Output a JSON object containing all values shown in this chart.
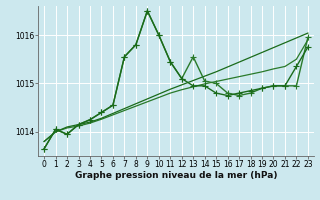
{
  "xlabel": "Graphe pression niveau de la mer (hPa)",
  "bg_color": "#cce8ee",
  "grid_color": "#ffffff",
  "ylim": [
    1013.5,
    1016.6
  ],
  "xlim": [
    -0.5,
    23.5
  ],
  "yticks": [
    1014,
    1015,
    1016
  ],
  "xticks": [
    0,
    1,
    2,
    3,
    4,
    5,
    6,
    7,
    8,
    9,
    10,
    11,
    12,
    13,
    14,
    15,
    16,
    17,
    18,
    19,
    20,
    21,
    22,
    23
  ],
  "series": [
    {
      "y": [
        1013.65,
        1014.05,
        1013.95,
        1014.15,
        1014.25,
        1014.4,
        1014.55,
        1015.55,
        1015.8,
        1016.5,
        1016.0,
        1015.45,
        1015.1,
        1014.95,
        1014.95,
        1014.8,
        1014.75,
        1014.8,
        1014.85,
        1014.9,
        1014.95,
        1014.95,
        1015.35,
        1015.75
      ],
      "color": "#1a6b1a",
      "marker": "+",
      "markersize": 4,
      "linewidth": 1.0,
      "zorder": 4
    },
    {
      "y": [
        1013.65,
        1014.05,
        1013.95,
        1014.15,
        1014.25,
        1014.4,
        1014.55,
        1015.55,
        1015.8,
        1016.5,
        1016.0,
        1015.45,
        1015.1,
        1015.55,
        1015.05,
        1015.0,
        1014.8,
        1014.75,
        1014.8,
        1014.9,
        1014.95,
        1014.95,
        1014.95,
        1015.95
      ],
      "color": "#2a7a2a",
      "marker": "+",
      "markersize": 4,
      "linewidth": 1.0,
      "zorder": 3
    },
    {
      "y": [
        1013.8,
        1014.0,
        1014.1,
        1014.15,
        1014.2,
        1014.28,
        1014.38,
        1014.48,
        1014.58,
        1014.68,
        1014.78,
        1014.88,
        1014.97,
        1015.06,
        1015.15,
        1015.24,
        1015.34,
        1015.44,
        1015.54,
        1015.64,
        1015.74,
        1015.84,
        1015.94,
        1016.04
      ],
      "color": "#1a6b1a",
      "marker": null,
      "markersize": 0,
      "linewidth": 0.9,
      "zorder": 2
    },
    {
      "y": [
        1013.8,
        1014.0,
        1014.08,
        1014.12,
        1014.18,
        1014.26,
        1014.35,
        1014.44,
        1014.53,
        1014.62,
        1014.71,
        1014.8,
        1014.87,
        1014.93,
        1014.99,
        1015.04,
        1015.09,
        1015.14,
        1015.19,
        1015.24,
        1015.3,
        1015.35,
        1015.5,
        1015.9
      ],
      "color": "#2a7a2a",
      "marker": null,
      "markersize": 0,
      "linewidth": 0.9,
      "zorder": 1
    }
  ],
  "tick_fontsize": 5.5,
  "label_fontsize": 6.5,
  "spine_color": "#666666"
}
